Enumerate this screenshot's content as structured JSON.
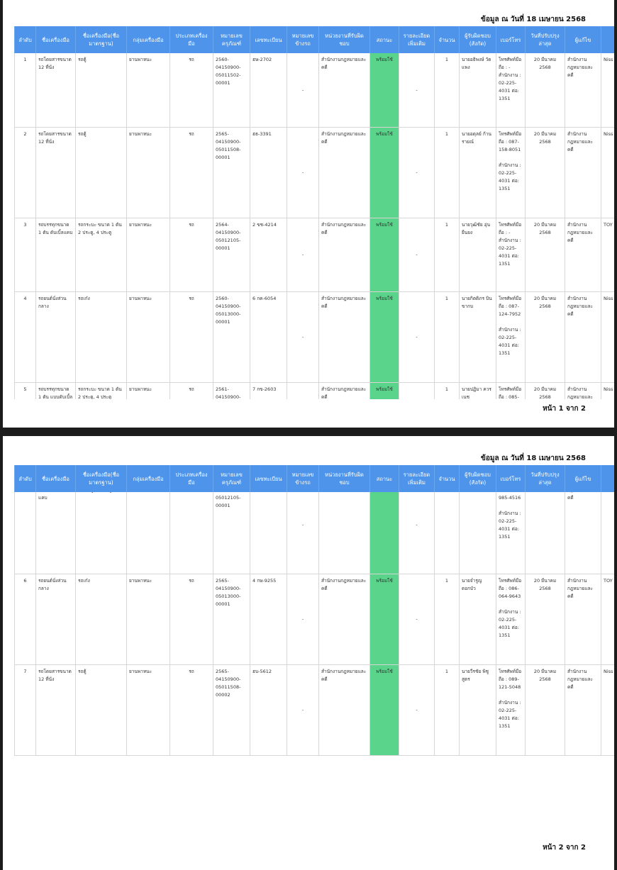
{
  "date_note": "ข้อมูล ณ วันที่ 18 เมษายน 2568",
  "table": {
    "headers": [
      "ลำดับ",
      "ชื่อเครื่องมือ",
      "ชื่อเครื่องมือ(ชื่อมาตรฐาน)",
      "กลุ่มเครื่องมือ",
      "ประเภทเครื่องมือ",
      "หมายเลขครุภัณฑ์",
      "เลขทะเบียน",
      "หมายเลขข้างรถ",
      "หน่วยงานที่รับผิดชอบ",
      "สถานะ",
      "รายละเอียดเพิ่มเติม",
      "จำนวน",
      "ผู้รับผิดชอบ (สังกัด)",
      "เบอร์โทร",
      "วันที่ปรับปรุงล่าสุด",
      "ผู้แก้ไข",
      ""
    ],
    "rows": [
      [
        "1",
        "รถโดยสารขนาด 12 ที่นั่ง",
        "รถตู้",
        "ยานพาหนะ",
        "รถ",
        "2560-04150900-05011502-00001",
        "ฮษ-2702",
        "-",
        "สำนักงานกฎหมายและคดี",
        "พร้อมใช้",
        "-",
        "1",
        "นายอธิพงษ์ วัดแพง",
        "โทรศัพท์มือถือ : -\nสำนักงาน : 02-225-4031 ต่อ: 1351",
        "20 มีนาคม 2568",
        "สำนักงานกฎหมายและคดี",
        "Niss"
      ],
      [
        "2",
        "รถโดยสารขนาด 12 ที่นั่ง",
        "รถตู้",
        "ยานพาหนะ",
        "รถ",
        "2565-04150900-05011508-00001",
        "ฮธ-3391",
        "-",
        "สำนักงานกฎหมายและคดี",
        "พร้อมใช้",
        "-",
        "1",
        "นายอดุลย์ ก้านรายณ์",
        "โทรศัพท์มือถือ : 087-158-8051\n\nสำนักงาน : 02-225-4031 ต่อ: 1351",
        "20 มีนาคม 2568",
        "สำนักงานกฎหมายและคดี",
        "Niss"
      ],
      [
        "3",
        "รถบรรทุกขนาด 1 ตัน ดับเบิ้ลแคบ",
        "รถกระบะ ขนาด 1 ตัน 2 ประตู, 4 ประตู",
        "ยานพาหนะ",
        "รถ",
        "2564-04150900-05012105-00001",
        "2 ขช-4214",
        "-",
        "สำนักงานกฎหมายและคดี",
        "พร้อมใช้",
        "-",
        "1",
        "นายวุฒิชัย อุ่นยืนยง",
        "โทรศัพท์มือถือ : -\nสำนักงาน : 02-225-4031 ต่อ: 1351",
        "20 มีนาคม 2568",
        "สำนักงานกฎหมายและคดี",
        "TOY"
      ],
      [
        "4",
        "รถยนต์นั่งส่วนกลาง",
        "รถเก๋ง",
        "ยานพาหนะ",
        "รถ",
        "2560-04150900-05013000-00001",
        "6 กค-6054",
        "-",
        "สำนักงานกฎหมายและคดี",
        "พร้อมใช้",
        "-",
        "1",
        "นายกิตติภร บินขากบ",
        "โทรศัพท์มือถือ : 087-124-7952\n\nสำนักงาน : 02-225-4031 ต่อ: 1351",
        "20 มีนาคม 2568",
        "สำนักงานกฎหมายและคดี",
        "Niss"
      ],
      [
        "5",
        "รถบรรทุกขนาด 1 ตัน แบบดับเบิ้ลแคบ",
        "รถกระบะ ขนาด 1 ตัน 2 ประตู, 4 ประตู",
        "ยานพาหนะ",
        "รถ",
        "2561-04150900-05012105-00001",
        "7 กข-2603",
        "-",
        "สำนักงานกฎหมายและคดี",
        "พร้อมใช้",
        "-",
        "1",
        "นายปฏิมา ควรเนช",
        "โทรศัพท์มือถือ : 085-985-4516\n\nสำนักงาน : 02-225-4031 ต่อ: 1351",
        "20 มีนาคม 2568",
        "สำนักงานกฎหมายและคดี",
        "Niss"
      ],
      [
        "6",
        "รถยนต์นั่งส่วนกลาง",
        "รถเก๋ง",
        "ยานพาหนะ",
        "รถ",
        "2565-04150900-05013000-00001",
        "4 กษ-9255",
        "-",
        "สำนักงานกฎหมายและคดี",
        "พร้อมใช้",
        "-",
        "1",
        "นายจำรูญ ดอกบัว",
        "โทรศัพท์มือถือ : 086-064-9643\n\nสำนักงาน : 02-225-4031 ต่อ: 1351",
        "20 มีนาคม 2568",
        "สำนักงานกฎหมายและคดี",
        "TOY"
      ],
      [
        "7",
        "รถโดยสารขนาด 12 ที่นั่ง",
        "รถตู้",
        "ยานพาหนะ",
        "รถ",
        "2565-04150900-05011508-00002",
        "ฮบ-5612",
        "-",
        "สำนักงานกฎหมายและคดี",
        "พร้อมใช้",
        "-",
        "1",
        "นายวีรชัย พิชูสูตร",
        "โทรศัพท์มือถือ : 089-121-5048\n\nสำนักงาน : 02-225-4031 ต่อ: 1351",
        "20 มีนาคม 2568",
        "สำนักงานกฎหมายและคดี",
        "Niss"
      ]
    ]
  },
  "pages": [
    {
      "footer": "หน้า 1 จาก 2"
    },
    {
      "footer": "หน้า 2 จาก 2"
    }
  ]
}
